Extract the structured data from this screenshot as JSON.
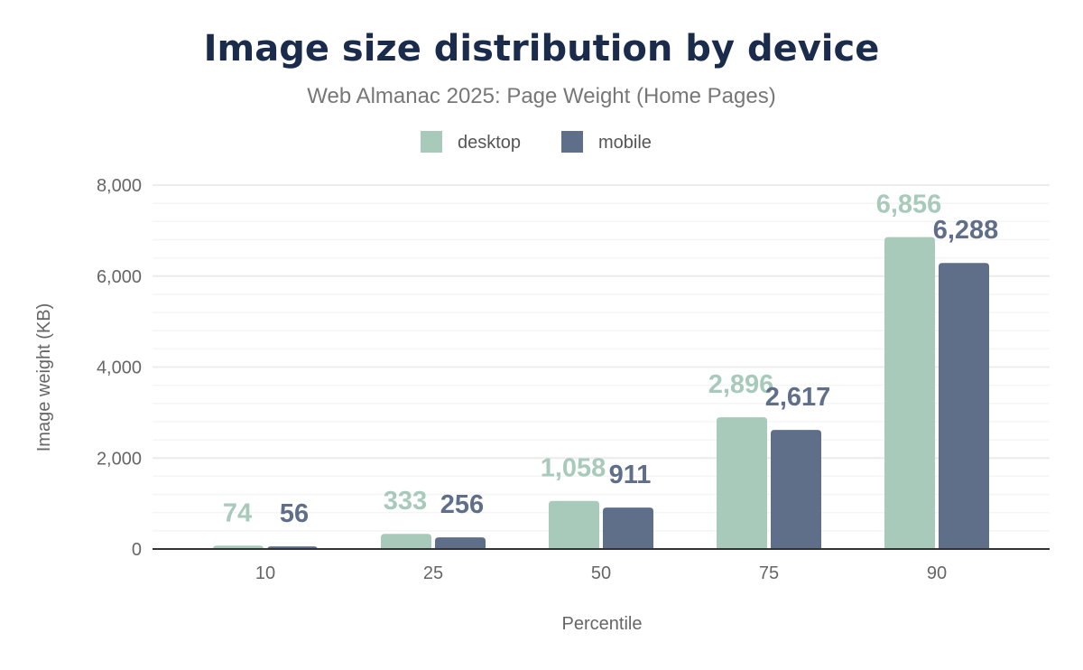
{
  "chart_data": {
    "type": "bar",
    "title": "Image size distribution by device",
    "subtitle": "Web Almanac 2025: Page Weight (Home Pages)",
    "xlabel": "Percentile",
    "ylabel": "Image weight (KB)",
    "categories": [
      "10",
      "25",
      "50",
      "75",
      "90"
    ],
    "ylim": [
      0,
      8000
    ],
    "yticks": [
      0,
      2000,
      4000,
      6000,
      8000
    ],
    "ytick_labels": [
      "0",
      "2,000",
      "4,000",
      "6,000",
      "8,000"
    ],
    "grid": true,
    "legend_placement": "top-center",
    "series": [
      {
        "name": "desktop",
        "color": "#a8cabb",
        "values": [
          74,
          333,
          1058,
          2896,
          6856
        ],
        "labels": [
          "74",
          "333",
          "1,058",
          "2,896",
          "6,856"
        ]
      },
      {
        "name": "mobile",
        "color": "#5f6f8a",
        "values": [
          56,
          256,
          911,
          2617,
          6288
        ],
        "labels": [
          "56",
          "256",
          "911",
          "2,617",
          "6,288"
        ]
      }
    ]
  }
}
